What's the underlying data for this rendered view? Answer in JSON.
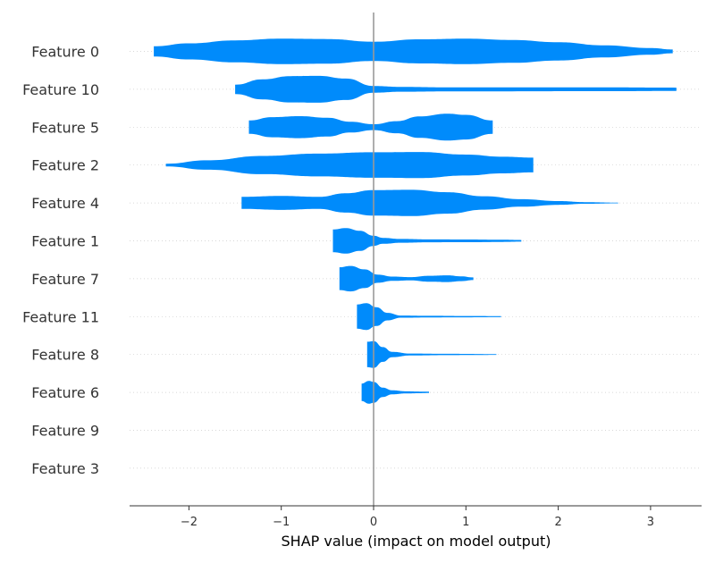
{
  "chart_data": {
    "type": "violin",
    "title": "",
    "xlabel": "SHAP value (impact on model output)",
    "ylabel": "",
    "xlim": [
      -2.65,
      3.55
    ],
    "xticks": [
      -2,
      -1,
      0,
      1,
      2,
      3
    ],
    "xtick_labels": [
      "−2",
      "−1",
      "0",
      "1",
      "2",
      "3"
    ],
    "zero_line": 0,
    "color": "#008bfb",
    "zero_line_color": "#999999",
    "grid": "dotted horizontal per feature",
    "features": [
      {
        "name": "Feature 0",
        "min": -2.38,
        "max": 3.24,
        "profile": [
          [
            -2.38,
            0.38
          ],
          [
            -2.0,
            0.6
          ],
          [
            -1.5,
            0.82
          ],
          [
            -1.0,
            0.95
          ],
          [
            -0.5,
            0.92
          ],
          [
            0.0,
            0.72
          ],
          [
            0.5,
            0.9
          ],
          [
            1.0,
            0.95
          ],
          [
            1.5,
            0.85
          ],
          [
            2.0,
            0.68
          ],
          [
            2.5,
            0.45
          ],
          [
            3.0,
            0.25
          ],
          [
            3.24,
            0.14
          ]
        ]
      },
      {
        "name": "Feature 10",
        "min": -1.5,
        "max": 3.28,
        "profile": [
          [
            -1.5,
            0.35
          ],
          [
            -1.2,
            0.75
          ],
          [
            -0.9,
            0.98
          ],
          [
            -0.6,
            1.0
          ],
          [
            -0.3,
            0.8
          ],
          [
            0.0,
            0.25
          ],
          [
            0.3,
            0.18
          ],
          [
            0.8,
            0.15
          ],
          [
            1.5,
            0.15
          ],
          [
            2.5,
            0.14
          ],
          [
            3.28,
            0.12
          ]
        ]
      },
      {
        "name": "Feature 5",
        "min": -1.35,
        "max": 1.29,
        "profile": [
          [
            -1.35,
            0.5
          ],
          [
            -1.1,
            0.75
          ],
          [
            -0.8,
            0.82
          ],
          [
            -0.5,
            0.7
          ],
          [
            -0.25,
            0.4
          ],
          [
            0.0,
            0.22
          ],
          [
            0.25,
            0.45
          ],
          [
            0.5,
            0.8
          ],
          [
            0.8,
            1.0
          ],
          [
            1.0,
            0.92
          ],
          [
            1.29,
            0.5
          ]
        ]
      },
      {
        "name": "Feature 2",
        "min": -2.25,
        "max": 1.73,
        "profile": [
          [
            -2.25,
            0.1
          ],
          [
            -1.8,
            0.35
          ],
          [
            -1.2,
            0.68
          ],
          [
            -0.6,
            0.85
          ],
          [
            0.0,
            0.95
          ],
          [
            0.5,
            0.97
          ],
          [
            1.0,
            0.78
          ],
          [
            1.4,
            0.62
          ],
          [
            1.73,
            0.55
          ]
        ]
      },
      {
        "name": "Feature 4",
        "min": -1.43,
        "max": 2.65,
        "profile": [
          [
            -1.43,
            0.45
          ],
          [
            -1.0,
            0.52
          ],
          [
            -0.6,
            0.45
          ],
          [
            -0.3,
            0.72
          ],
          [
            0.0,
            0.95
          ],
          [
            0.4,
            0.98
          ],
          [
            0.8,
            0.8
          ],
          [
            1.2,
            0.5
          ],
          [
            1.6,
            0.28
          ],
          [
            2.0,
            0.14
          ],
          [
            2.3,
            0.06
          ],
          [
            2.65,
            0.03
          ]
        ]
      },
      {
        "name": "Feature 1",
        "min": -0.44,
        "max": 1.6,
        "profile": [
          [
            -0.44,
            0.85
          ],
          [
            -0.3,
            0.95
          ],
          [
            -0.15,
            0.75
          ],
          [
            0.0,
            0.38
          ],
          [
            0.1,
            0.22
          ],
          [
            0.3,
            0.14
          ],
          [
            0.6,
            0.11
          ],
          [
            1.0,
            0.1
          ],
          [
            1.4,
            0.08
          ],
          [
            1.6,
            0.06
          ]
        ]
      },
      {
        "name": "Feature 7",
        "min": -0.37,
        "max": 1.08,
        "profile": [
          [
            -0.37,
            0.85
          ],
          [
            -0.25,
            0.95
          ],
          [
            -0.1,
            0.7
          ],
          [
            0.05,
            0.3
          ],
          [
            0.2,
            0.16
          ],
          [
            0.4,
            0.12
          ],
          [
            0.6,
            0.22
          ],
          [
            0.8,
            0.25
          ],
          [
            0.95,
            0.18
          ],
          [
            1.08,
            0.1
          ]
        ]
      },
      {
        "name": "Feature 11",
        "min": -0.18,
        "max": 1.38,
        "profile": [
          [
            -0.18,
            0.9
          ],
          [
            -0.08,
            1.0
          ],
          [
            0.03,
            0.7
          ],
          [
            0.15,
            0.28
          ],
          [
            0.3,
            0.08
          ],
          [
            0.6,
            0.06
          ],
          [
            1.0,
            0.05
          ],
          [
            1.38,
            0.04
          ]
        ]
      },
      {
        "name": "Feature 8",
        "min": -0.07,
        "max": 1.33,
        "profile": [
          [
            -0.07,
            0.95
          ],
          [
            0.0,
            1.0
          ],
          [
            0.1,
            0.55
          ],
          [
            0.2,
            0.2
          ],
          [
            0.4,
            0.07
          ],
          [
            0.8,
            0.05
          ],
          [
            1.1,
            0.04
          ],
          [
            1.33,
            0.03
          ]
        ]
      },
      {
        "name": "Feature 6",
        "min": -0.13,
        "max": 0.6,
        "profile": [
          [
            -0.13,
            0.65
          ],
          [
            -0.05,
            0.85
          ],
          [
            0.0,
            0.78
          ],
          [
            0.1,
            0.35
          ],
          [
            0.2,
            0.15
          ],
          [
            0.35,
            0.08
          ],
          [
            0.5,
            0.06
          ],
          [
            0.6,
            0.05
          ]
        ]
      },
      {
        "name": "Feature 9",
        "min": 0,
        "max": 0,
        "profile": []
      },
      {
        "name": "Feature 3",
        "min": 0,
        "max": 0,
        "profile": []
      }
    ]
  }
}
